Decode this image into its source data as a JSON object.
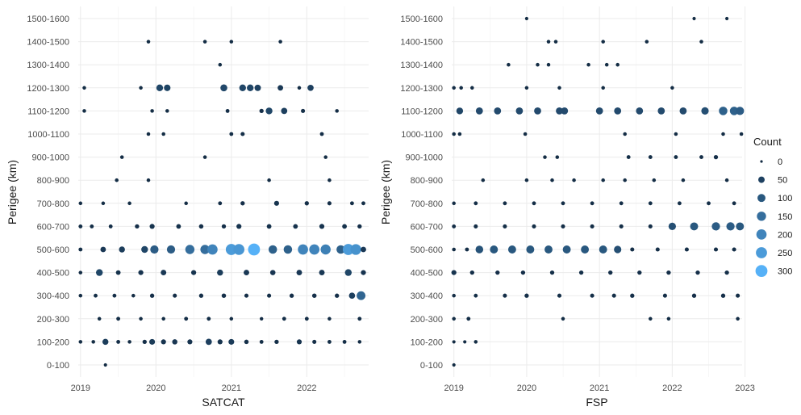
{
  "chart_data": [
    {
      "type": "scatter",
      "panel": "SATCAT",
      "xlabel": "SATCAT",
      "ylabel": "Perigee (km)",
      "x_ticks": [
        "2019",
        "2020",
        "2021",
        "2022"
      ],
      "xlim": [
        2018.97,
        2022.82
      ],
      "y_categories": [
        "0-100",
        "100-200",
        "200-300",
        "300-400",
        "400-500",
        "500-600",
        "600-700",
        "700-800",
        "800-900",
        "900-1000",
        "1000-1100",
        "1100-1200",
        "1200-1300",
        "1300-1400",
        "1400-1500",
        "1500-1600"
      ],
      "rows": {
        "0-100": [
          [
            2019.33,
            2
          ]
        ],
        "100-200": [
          [
            2019.0,
            4
          ],
          [
            2019.17,
            4
          ],
          [
            2019.33,
            40
          ],
          [
            2019.5,
            6
          ],
          [
            2019.65,
            4
          ],
          [
            2019.85,
            10
          ],
          [
            2019.95,
            35
          ],
          [
            2020.1,
            20
          ],
          [
            2020.25,
            25
          ],
          [
            2020.45,
            20
          ],
          [
            2020.7,
            45
          ],
          [
            2020.85,
            20
          ],
          [
            2021.0,
            35
          ],
          [
            2021.2,
            12
          ],
          [
            2021.4,
            6
          ],
          [
            2021.6,
            10
          ],
          [
            2021.9,
            20
          ],
          [
            2022.1,
            8
          ],
          [
            2022.3,
            6
          ],
          [
            2022.5,
            6
          ],
          [
            2022.7,
            4
          ]
        ],
        "200-300": [
          [
            2019.25,
            4
          ],
          [
            2019.5,
            6
          ],
          [
            2019.8,
            4
          ],
          [
            2020.1,
            4
          ],
          [
            2020.4,
            6
          ],
          [
            2020.7,
            6
          ],
          [
            2021.0,
            4
          ],
          [
            2021.4,
            3
          ],
          [
            2021.7,
            6
          ],
          [
            2022.0,
            6
          ],
          [
            2022.3,
            4
          ],
          [
            2022.7,
            6
          ]
        ],
        "300-400": [
          [
            2019.0,
            4
          ],
          [
            2019.2,
            6
          ],
          [
            2019.45,
            6
          ],
          [
            2019.7,
            4
          ],
          [
            2019.95,
            10
          ],
          [
            2020.25,
            8
          ],
          [
            2020.6,
            10
          ],
          [
            2020.9,
            12
          ],
          [
            2021.2,
            8
          ],
          [
            2021.5,
            8
          ],
          [
            2021.8,
            10
          ],
          [
            2022.1,
            12
          ],
          [
            2022.4,
            10
          ],
          [
            2022.6,
            45
          ],
          [
            2022.72,
            130
          ]
        ],
        "400-500": [
          [
            2019.0,
            4
          ],
          [
            2019.25,
            60
          ],
          [
            2019.5,
            15
          ],
          [
            2019.8,
            20
          ],
          [
            2020.1,
            30
          ],
          [
            2020.5,
            20
          ],
          [
            2020.85,
            40
          ],
          [
            2021.2,
            30
          ],
          [
            2021.55,
            25
          ],
          [
            2021.9,
            30
          ],
          [
            2022.2,
            30
          ],
          [
            2022.55,
            60
          ],
          [
            2022.75,
            20
          ]
        ],
        "500-600": [
          [
            2019.0,
            6
          ],
          [
            2019.3,
            30
          ],
          [
            2019.55,
            40
          ],
          [
            2019.85,
            60
          ],
          [
            2019.98,
            110
          ],
          [
            2020.2,
            110
          ],
          [
            2020.45,
            150
          ],
          [
            2020.65,
            150
          ],
          [
            2020.75,
            200
          ],
          [
            2021.0,
            250
          ],
          [
            2021.1,
            240
          ],
          [
            2021.3,
            300
          ],
          [
            2021.55,
            120
          ],
          [
            2021.75,
            120
          ],
          [
            2021.95,
            200
          ],
          [
            2022.1,
            200
          ],
          [
            2022.25,
            190
          ],
          [
            2022.45,
            120
          ],
          [
            2022.55,
            250
          ],
          [
            2022.65,
            230
          ],
          [
            2022.75,
            30
          ]
        ],
        "600-700": [
          [
            2019.0,
            6
          ],
          [
            2019.15,
            6
          ],
          [
            2019.4,
            6
          ],
          [
            2019.75,
            10
          ],
          [
            2019.95,
            20
          ],
          [
            2020.3,
            15
          ],
          [
            2020.6,
            12
          ],
          [
            2020.9,
            10
          ],
          [
            2021.1,
            20
          ],
          [
            2021.5,
            15
          ],
          [
            2021.85,
            15
          ],
          [
            2022.2,
            20
          ],
          [
            2022.5,
            15
          ],
          [
            2022.7,
            10
          ]
        ],
        "700-800": [
          [
            2019.0,
            4
          ],
          [
            2019.3,
            4
          ],
          [
            2019.65,
            4
          ],
          [
            2020.4,
            4
          ],
          [
            2020.85,
            6
          ],
          [
            2021.15,
            10
          ],
          [
            2021.6,
            20
          ],
          [
            2022.0,
            10
          ],
          [
            2022.3,
            8
          ],
          [
            2022.6,
            6
          ],
          [
            2022.75,
            6
          ]
        ],
        "800-900": [
          [
            2019.48,
            4
          ],
          [
            2019.9,
            4
          ],
          [
            2021.5,
            4
          ],
          [
            2022.3,
            4
          ]
        ],
        "900-1000": [
          [
            2019.55,
            4
          ],
          [
            2020.65,
            4
          ],
          [
            2022.25,
            4
          ]
        ],
        "1000-1100": [
          [
            2019.9,
            4
          ],
          [
            2020.1,
            4
          ],
          [
            2021.0,
            6
          ],
          [
            2021.15,
            8
          ],
          [
            2022.2,
            6
          ]
        ],
        "1100-1200": [
          [
            2019.05,
            4
          ],
          [
            2019.95,
            4
          ],
          [
            2020.15,
            4
          ],
          [
            2020.95,
            6
          ],
          [
            2021.4,
            10
          ],
          [
            2021.5,
            60
          ],
          [
            2021.7,
            45
          ],
          [
            2021.95,
            8
          ],
          [
            2022.4,
            4
          ]
        ],
        "1200-1300": [
          [
            2019.05,
            4
          ],
          [
            2019.8,
            4
          ],
          [
            2020.05,
            60
          ],
          [
            2020.15,
            55
          ],
          [
            2020.9,
            65
          ],
          [
            2021.15,
            60
          ],
          [
            2021.25,
            60
          ],
          [
            2021.35,
            50
          ],
          [
            2021.65,
            30
          ],
          [
            2021.9,
            4
          ],
          [
            2022.05,
            45
          ]
        ],
        "1300-1400": [
          [
            2020.85,
            4
          ]
        ],
        "1400-1500": [
          [
            2019.9,
            4
          ],
          [
            2020.65,
            4
          ],
          [
            2021.0,
            4
          ],
          [
            2021.65,
            4
          ]
        ],
        "1500-1600": []
      }
    },
    {
      "type": "scatter",
      "panel": "FSP",
      "xlabel": "FSP",
      "ylabel": "Perigee (km)",
      "x_ticks": [
        "2019",
        "2020",
        "2021",
        "2022",
        "2023"
      ],
      "xlim": [
        2018.97,
        2022.96
      ],
      "y_categories": [
        "0-100",
        "100-200",
        "200-300",
        "300-400",
        "400-500",
        "500-600",
        "600-700",
        "700-800",
        "800-900",
        "900-1000",
        "1000-1100",
        "1100-1200",
        "1200-1300",
        "1300-1400",
        "1400-1500",
        "1500-1600"
      ],
      "rows": {
        "0-100": [
          [
            2019.0,
            2
          ]
        ],
        "100-200": [
          [
            2019.0,
            2
          ],
          [
            2019.15,
            2
          ],
          [
            2019.3,
            4
          ]
        ],
        "200-300": [
          [
            2019.0,
            4
          ],
          [
            2019.2,
            6
          ],
          [
            2020.5,
            4
          ],
          [
            2021.7,
            4
          ],
          [
            2021.95,
            4
          ],
          [
            2022.9,
            4
          ]
        ],
        "300-400": [
          [
            2019.0,
            4
          ],
          [
            2019.3,
            6
          ],
          [
            2019.7,
            8
          ],
          [
            2020.0,
            10
          ],
          [
            2020.45,
            8
          ],
          [
            2020.9,
            8
          ],
          [
            2021.2,
            8
          ],
          [
            2021.45,
            10
          ],
          [
            2021.9,
            8
          ],
          [
            2022.3,
            10
          ],
          [
            2022.7,
            10
          ],
          [
            2022.9,
            8
          ]
        ],
        "400-500": [
          [
            2019.0,
            20
          ],
          [
            2019.25,
            10
          ],
          [
            2019.6,
            10
          ],
          [
            2019.95,
            10
          ],
          [
            2020.35,
            10
          ],
          [
            2020.75,
            10
          ],
          [
            2021.15,
            10
          ],
          [
            2021.55,
            10
          ],
          [
            2021.95,
            10
          ],
          [
            2022.35,
            10
          ],
          [
            2022.75,
            10
          ]
        ],
        "500-600": [
          [
            2019.0,
            4
          ],
          [
            2019.18,
            6
          ],
          [
            2019.35,
            90
          ],
          [
            2019.55,
            100
          ],
          [
            2019.8,
            100
          ],
          [
            2020.05,
            100
          ],
          [
            2020.3,
            100
          ],
          [
            2020.55,
            100
          ],
          [
            2020.8,
            100
          ],
          [
            2021.05,
            100
          ],
          [
            2021.25,
            80
          ],
          [
            2021.45,
            8
          ],
          [
            2021.8,
            8
          ],
          [
            2022.2,
            8
          ],
          [
            2022.6,
            8
          ],
          [
            2022.85,
            8
          ]
        ],
        "600-700": [
          [
            2019.0,
            6
          ],
          [
            2019.3,
            8
          ],
          [
            2019.7,
            8
          ],
          [
            2020.1,
            8
          ],
          [
            2020.5,
            8
          ],
          [
            2020.9,
            8
          ],
          [
            2021.3,
            8
          ],
          [
            2021.7,
            8
          ],
          [
            2022.0,
            80
          ],
          [
            2022.3,
            100
          ],
          [
            2022.6,
            110
          ],
          [
            2022.8,
            110
          ],
          [
            2022.93,
            100
          ]
        ],
        "700-800": [
          [
            2019.0,
            4
          ],
          [
            2019.3,
            6
          ],
          [
            2019.7,
            6
          ],
          [
            2020.1,
            6
          ],
          [
            2020.5,
            6
          ],
          [
            2020.9,
            6
          ],
          [
            2021.3,
            6
          ],
          [
            2021.7,
            6
          ],
          [
            2022.1,
            6
          ],
          [
            2022.5,
            6
          ],
          [
            2022.85,
            6
          ]
        ],
        "800-900": [
          [
            2019.4,
            4
          ],
          [
            2020.0,
            4
          ],
          [
            2020.35,
            4
          ],
          [
            2020.65,
            4
          ],
          [
            2021.05,
            4
          ],
          [
            2021.35,
            4
          ],
          [
            2021.75,
            4
          ],
          [
            2022.15,
            4
          ],
          [
            2022.75,
            4
          ]
        ],
        "900-1000": [
          [
            2020.25,
            4
          ],
          [
            2020.42,
            4
          ],
          [
            2021.4,
            6
          ],
          [
            2021.7,
            6
          ],
          [
            2022.05,
            6
          ],
          [
            2022.4,
            6
          ],
          [
            2022.6,
            10
          ]
        ],
        "1000-1100": [
          [
            2019.0,
            4
          ],
          [
            2019.08,
            4
          ],
          [
            2019.98,
            4
          ],
          [
            2021.35,
            4
          ],
          [
            2022.05,
            4
          ],
          [
            2022.7,
            4
          ],
          [
            2022.95,
            4
          ]
        ],
        "1100-1200": [
          [
            2019.08,
            60
          ],
          [
            2019.35,
            70
          ],
          [
            2019.6,
            70
          ],
          [
            2019.9,
            70
          ],
          [
            2020.15,
            70
          ],
          [
            2020.45,
            70
          ],
          [
            2020.52,
            70
          ],
          [
            2021.0,
            70
          ],
          [
            2021.25,
            70
          ],
          [
            2021.55,
            70
          ],
          [
            2021.85,
            70
          ],
          [
            2022.15,
            70
          ],
          [
            2022.45,
            80
          ],
          [
            2022.7,
            120
          ],
          [
            2022.85,
            120
          ],
          [
            2022.93,
            110
          ]
        ],
        "1200-1300": [
          [
            2019.0,
            4
          ],
          [
            2019.1,
            4
          ],
          [
            2019.25,
            4
          ],
          [
            2020.0,
            4
          ],
          [
            2020.45,
            4
          ],
          [
            2021.05,
            4
          ],
          [
            2022.0,
            4
          ]
        ],
        "1300-1400": [
          [
            2019.75,
            4
          ],
          [
            2020.15,
            4
          ],
          [
            2020.3,
            4
          ],
          [
            2020.85,
            4
          ],
          [
            2021.1,
            4
          ],
          [
            2021.25,
            4
          ]
        ],
        "1400-1500": [
          [
            2020.3,
            4
          ],
          [
            2020.4,
            4
          ],
          [
            2021.05,
            4
          ],
          [
            2021.65,
            4
          ],
          [
            2022.4,
            4
          ]
        ],
        "1500-1600": [
          [
            2020.0,
            2
          ],
          [
            2022.3,
            2
          ],
          [
            2022.75,
            2
          ]
        ]
      }
    }
  ],
  "legend": {
    "title": "Count",
    "entries": [
      {
        "label": "0",
        "value": 0
      },
      {
        "label": "50",
        "value": 50
      },
      {
        "label": "100",
        "value": 100
      },
      {
        "label": "150",
        "value": 150
      },
      {
        "label": "200",
        "value": 200
      },
      {
        "label": "250",
        "value": 250
      },
      {
        "label": "300",
        "value": 300
      }
    ],
    "color_low": "#132B43",
    "color_high": "#56B1F7"
  },
  "colors": {
    "panel_bg": "#ffffff",
    "grid": "#ebebeb"
  }
}
